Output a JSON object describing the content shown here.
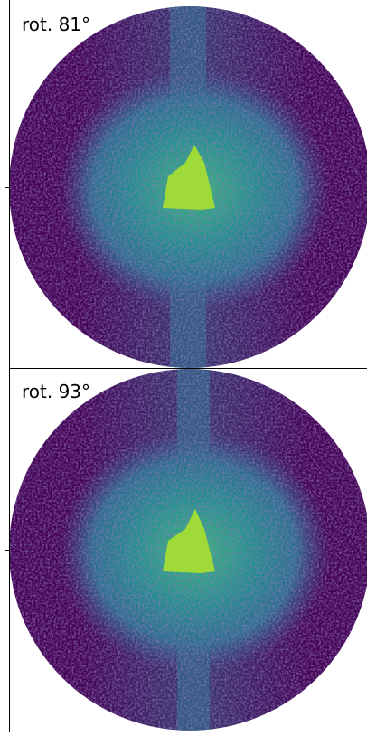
{
  "panels": [
    {
      "label": "rot. 81°"
    },
    {
      "label": "rot. 93°"
    }
  ]
}
